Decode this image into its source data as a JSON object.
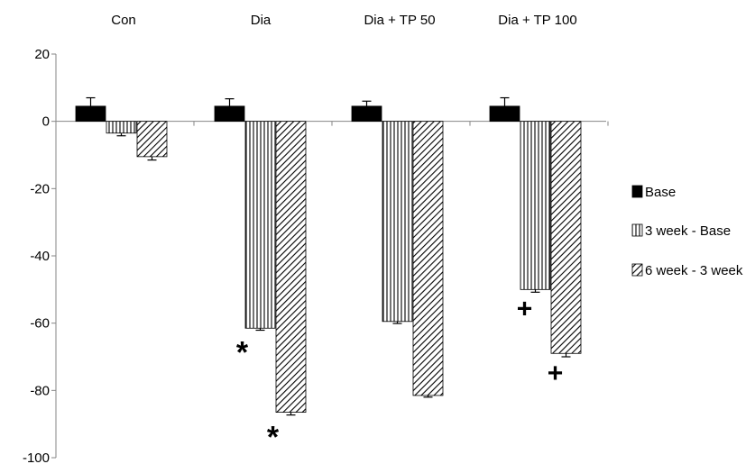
{
  "chart_data": {
    "type": "bar",
    "categories": [
      "Con",
      "Dia",
      "Dia + TP 50",
      "Dia + TP 100"
    ],
    "ylim": [
      -100,
      20
    ],
    "yticks": [
      20,
      0,
      -20,
      -40,
      -60,
      -80,
      -100
    ],
    "grid": false,
    "legend_position": "right",
    "series": [
      {
        "name": "Base",
        "pattern": "solid",
        "values": [
          4.5,
          4.5,
          4.5,
          4.5
        ],
        "errors": [
          2.5,
          2.2,
          1.5,
          2.5
        ]
      },
      {
        "name": "3 week - Base",
        "pattern": "vertical",
        "values": [
          -3.5,
          -61.5,
          -59.5,
          -50
        ],
        "errors": [
          0.8,
          0.6,
          0.6,
          0.8
        ]
      },
      {
        "name": "6 week - 3 week",
        "pattern": "diagonal",
        "values": [
          -10.5,
          -86.5,
          -81.5,
          -69
        ],
        "errors": [
          1.0,
          0.8,
          0.5,
          1.0
        ]
      }
    ],
    "annotations": [
      {
        "category": "Dia",
        "series": "3 week - Base",
        "text": "*"
      },
      {
        "category": "Dia",
        "series": "6 week - 3 week",
        "text": "*"
      },
      {
        "category": "Dia + TP 100",
        "series": "3 week - Base",
        "text": "+"
      },
      {
        "category": "Dia + TP 100",
        "series": "6 week - 3 week",
        "text": "+"
      }
    ],
    "colors": {
      "bar": "#000000",
      "fill": "#ffffff",
      "axis": "#868686"
    }
  }
}
